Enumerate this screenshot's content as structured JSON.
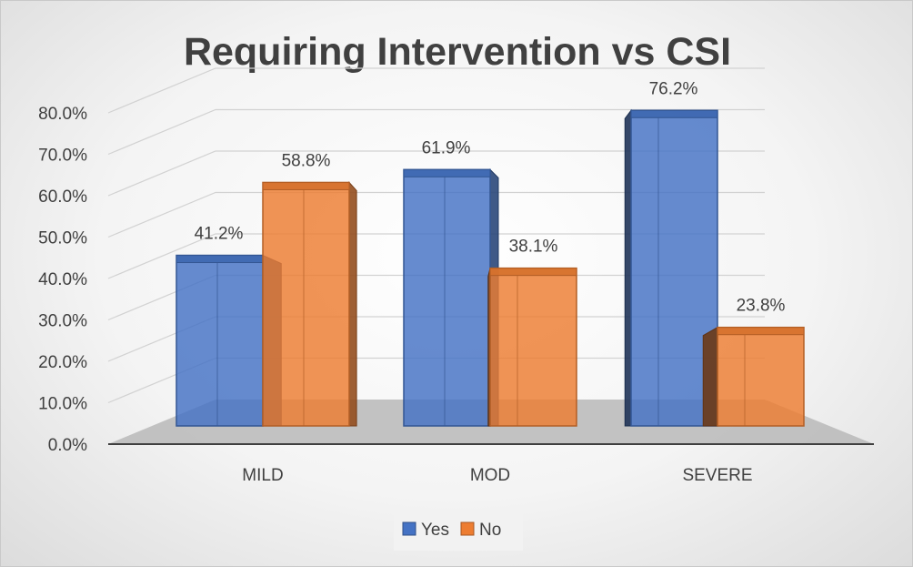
{
  "chart_data": {
    "type": "bar",
    "title": "Requiring Intervention  vs CSI",
    "xlabel": "",
    "ylabel": "",
    "categories": [
      "MILD",
      "MOD",
      "SEVERE"
    ],
    "series": [
      {
        "name": "Yes",
        "values": [
          41.2,
          61.9,
          76.2
        ],
        "labels": [
          "41.2%",
          "61.9%",
          "76.2%"
        ],
        "color": "#4472C4"
      },
      {
        "name": "No",
        "values": [
          58.8,
          38.1,
          23.8
        ],
        "labels": [
          "58.8%",
          "38.1%",
          "23.8%"
        ],
        "color": "#ED7D31"
      }
    ],
    "y_ticks": [
      "0.0%",
      "10.0%",
      "20.0%",
      "30.0%",
      "40.0%",
      "50.0%",
      "60.0%",
      "70.0%",
      "80.0%"
    ],
    "ylim": [
      0,
      80
    ],
    "grid": true,
    "legend_position": "bottom",
    "style": "3d-column"
  }
}
